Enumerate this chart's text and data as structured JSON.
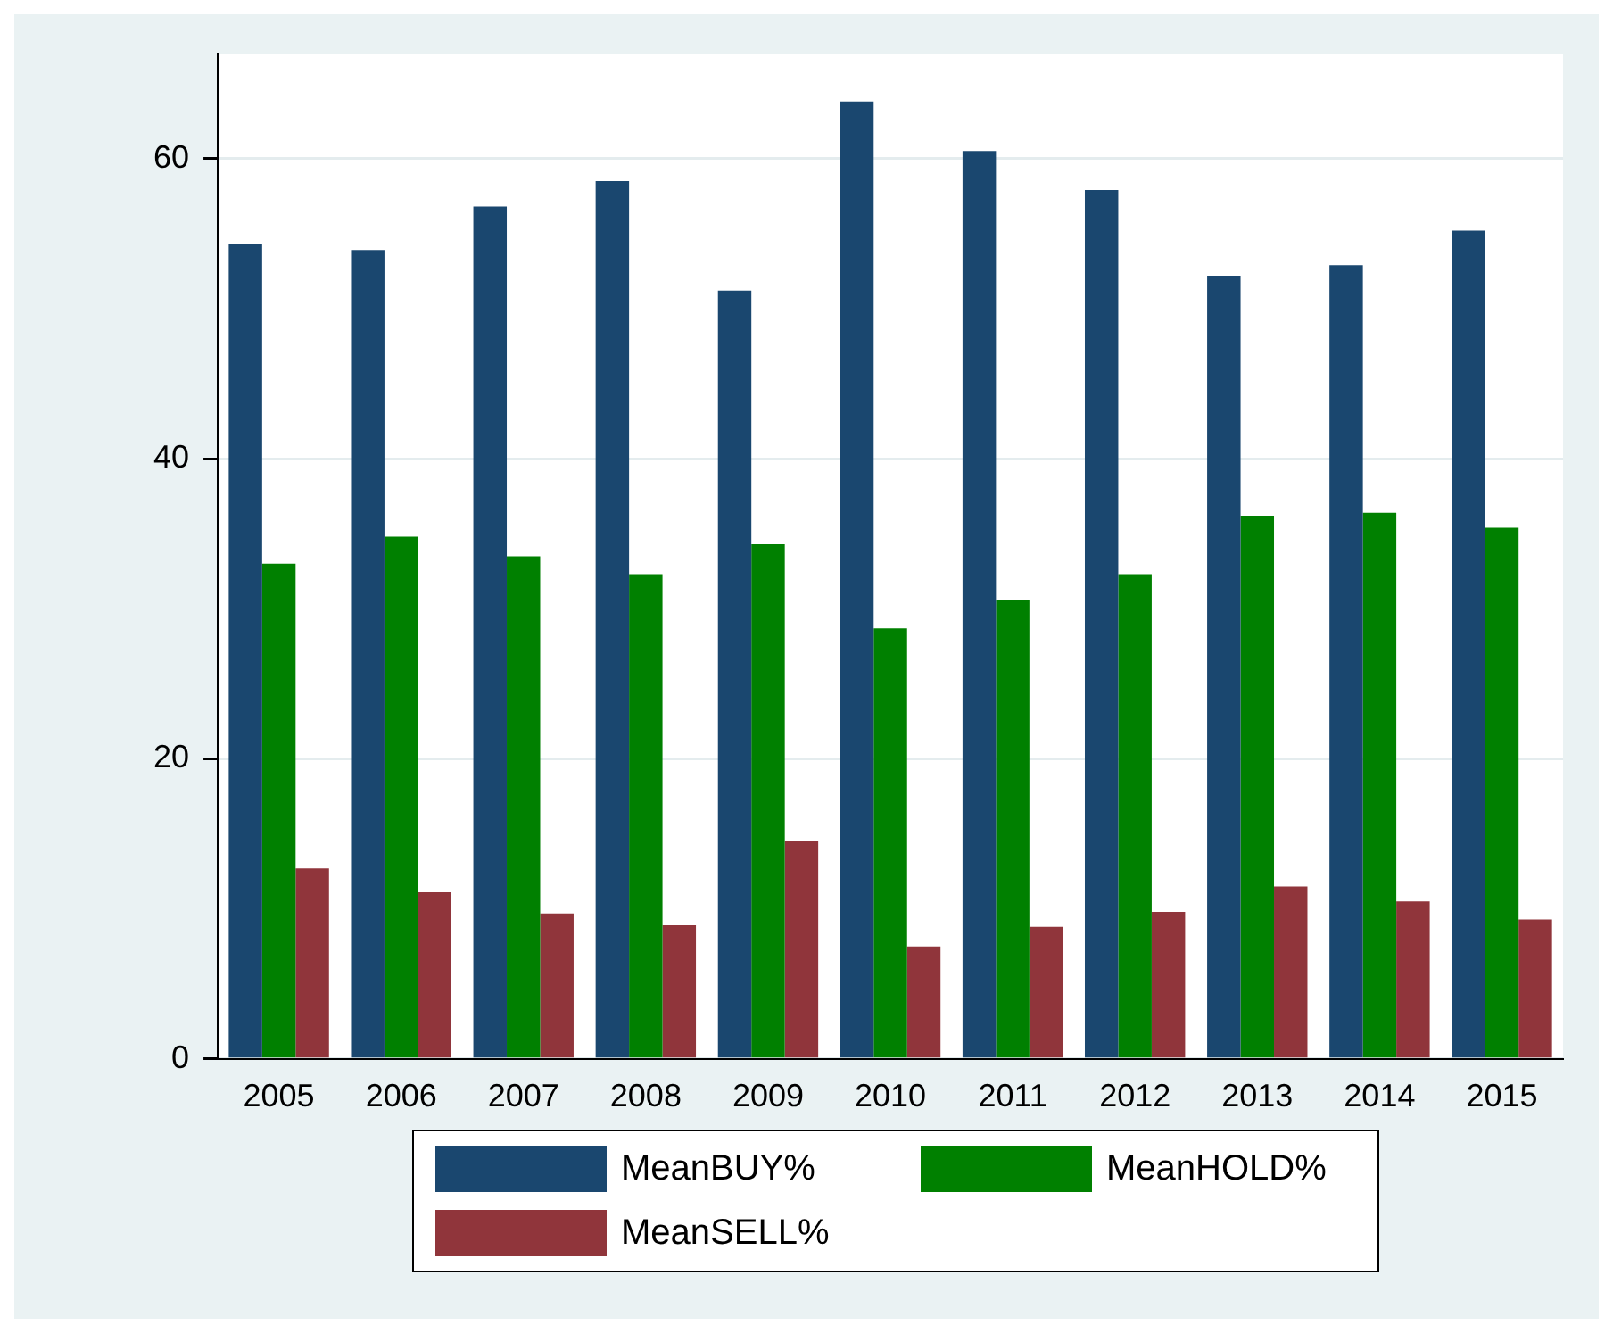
{
  "chart_data": {
    "type": "bar",
    "categories": [
      "2005",
      "2006",
      "2007",
      "2008",
      "2009",
      "2010",
      "2011",
      "2012",
      "2013",
      "2014",
      "2015"
    ],
    "series": [
      {
        "name": "MeanBUY%",
        "color": "#1a476f",
        "values": [
          54.3,
          53.9,
          56.8,
          58.5,
          51.2,
          63.8,
          60.5,
          57.9,
          52.2,
          52.9,
          55.2
        ]
      },
      {
        "name": "MeanHOLD%",
        "color": "#008000",
        "values": [
          33.0,
          34.8,
          33.5,
          32.3,
          34.3,
          28.7,
          30.6,
          32.3,
          36.2,
          36.4,
          35.4
        ]
      },
      {
        "name": "MeanSELL%",
        "color": "#90353b",
        "values": [
          12.7,
          11.1,
          9.7,
          8.9,
          14.5,
          7.5,
          8.8,
          9.8,
          11.5,
          10.5,
          9.3
        ]
      }
    ],
    "ylim": [
      0,
      67
    ],
    "yticks": [
      0,
      20,
      40,
      60
    ],
    "grid": "y",
    "legend": "bottom"
  }
}
